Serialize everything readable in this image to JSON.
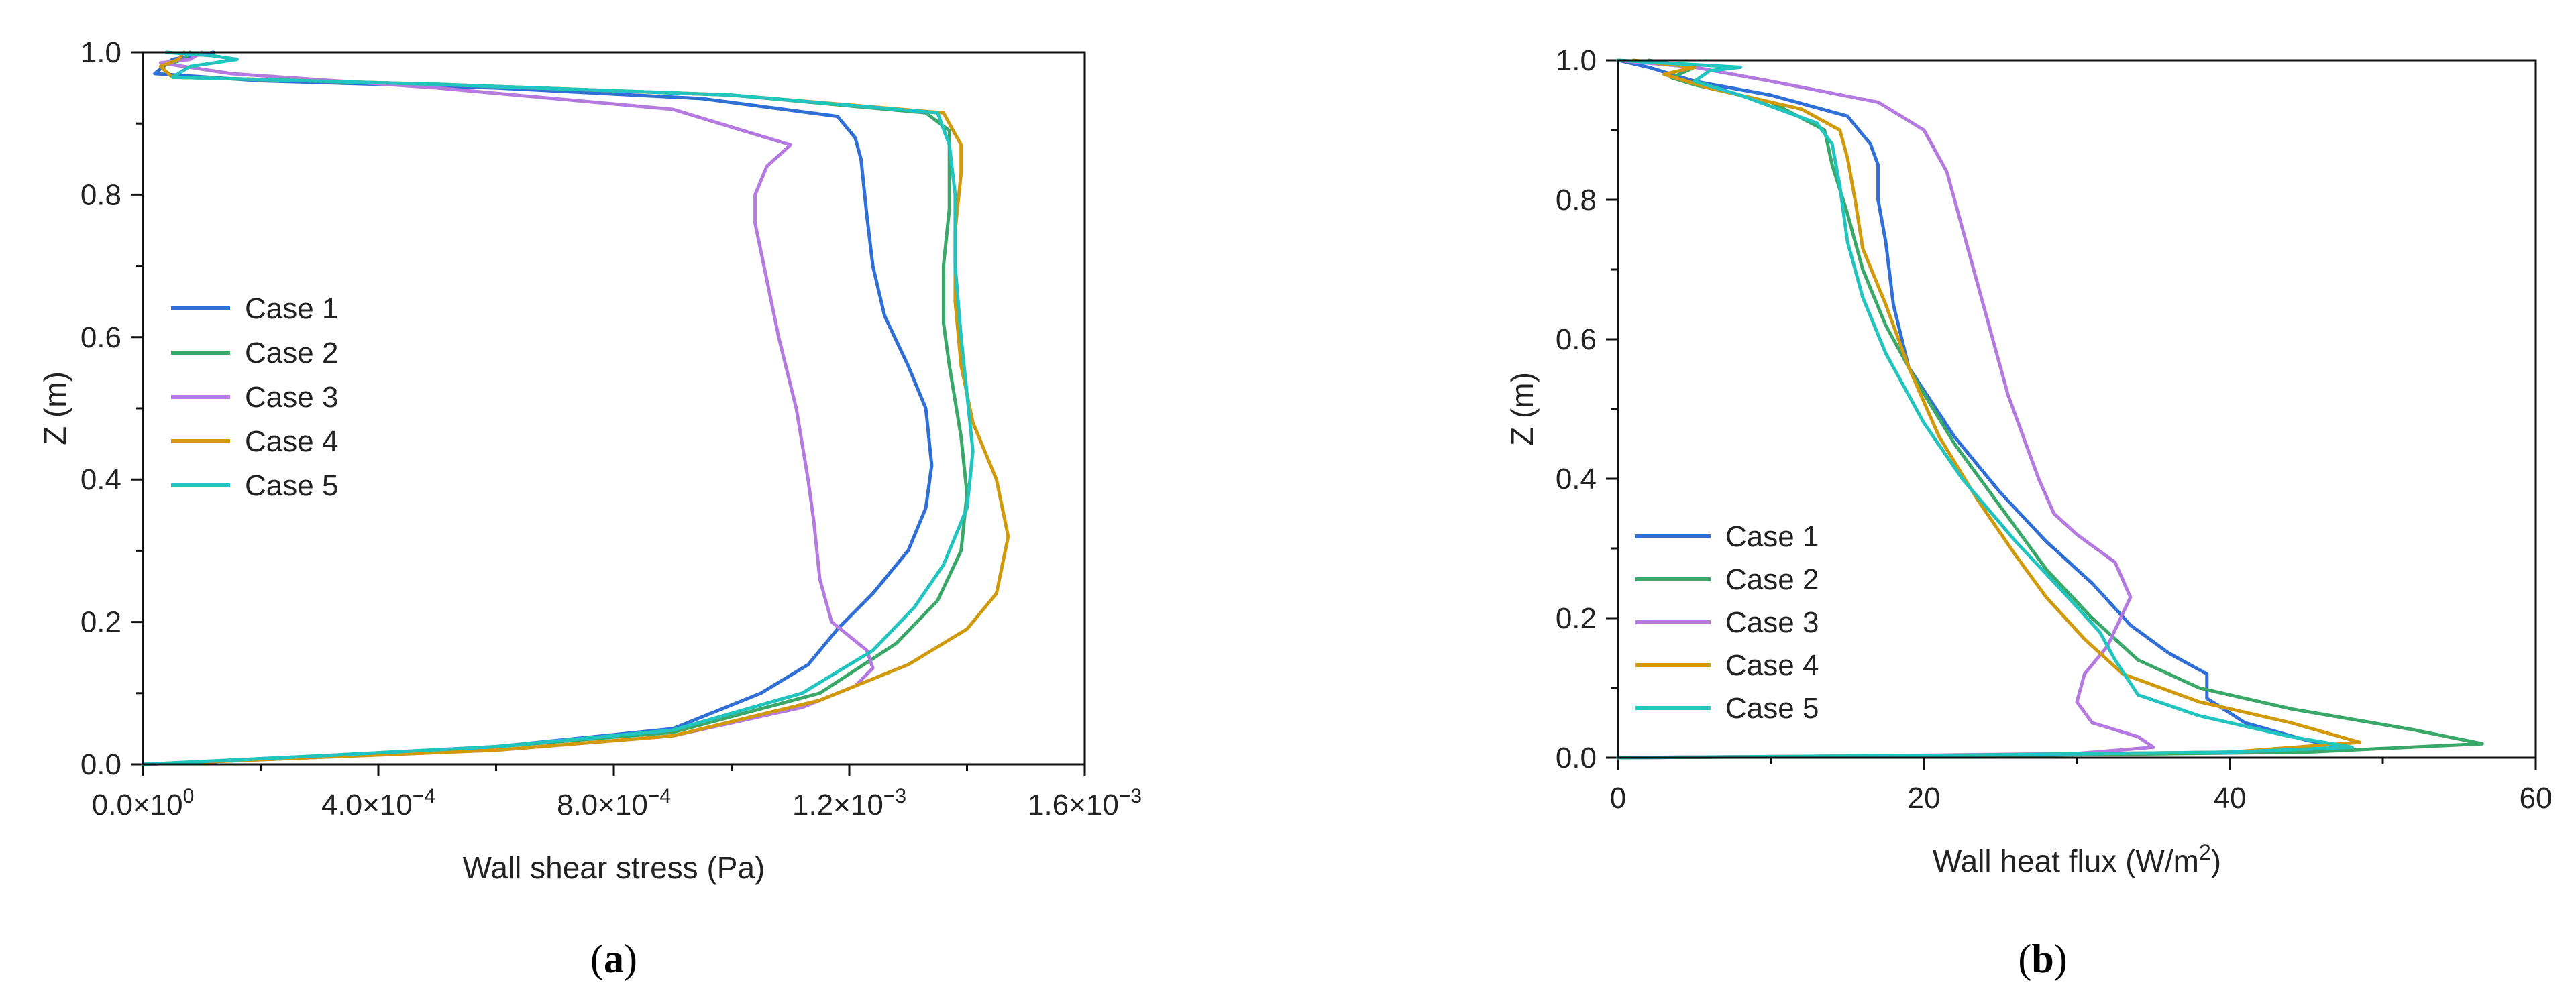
{
  "colors": {
    "case1": "#2f6fd6",
    "case2": "#3aa868",
    "case3": "#b57ae0",
    "case4": "#d19a0c",
    "case5": "#22c4c0"
  },
  "chart_data": [
    {
      "type": "line",
      "panel_label_open": "(",
      "panel_label_letter": "a",
      "panel_label_close": ")",
      "xlabel": "Wall shear stress (Pa)",
      "ylabel": "Z (m)",
      "xlim": [
        0,
        0.0016
      ],
      "ylim": [
        0,
        1.0
      ],
      "xticks": [
        0,
        0.0004,
        0.0008,
        0.0012,
        0.0016
      ],
      "xtick_mantissas": [
        "0.0",
        "4.0",
        "8.0",
        "1.2",
        "1.6"
      ],
      "xtick_exponents": [
        "0",
        "−4",
        "−4",
        "−3",
        "−3"
      ],
      "yticks": [
        0.0,
        0.2,
        0.4,
        0.6,
        0.8,
        1.0
      ],
      "ytick_labels": [
        "0.0",
        "0.2",
        "0.4",
        "0.6",
        "0.8",
        "1.0"
      ],
      "legend_position": "middle-left",
      "grid": false,
      "series": [
        {
          "name": "Case 1",
          "color_key": "case1",
          "points": [
            [
              0,
              0
            ],
            [
              0.0003,
              0.01
            ],
            [
              0.0006,
              0.025
            ],
            [
              0.0009,
              0.05
            ],
            [
              0.00105,
              0.1
            ],
            [
              0.00113,
              0.14
            ],
            [
              0.00118,
              0.19
            ],
            [
              0.00124,
              0.24
            ],
            [
              0.0013,
              0.3
            ],
            [
              0.00133,
              0.36
            ],
            [
              0.00134,
              0.42
            ],
            [
              0.00133,
              0.5
            ],
            [
              0.0013,
              0.56
            ],
            [
              0.00126,
              0.63
            ],
            [
              0.00124,
              0.7
            ],
            [
              0.00123,
              0.77
            ],
            [
              0.00122,
              0.85
            ],
            [
              0.00121,
              0.88
            ],
            [
              0.00118,
              0.91
            ],
            [
              0.00095,
              0.935
            ],
            [
              0.0006,
              0.95
            ],
            [
              0.0002,
              0.96
            ],
            [
              2e-05,
              0.97
            ],
            [
              5e-05,
              0.99
            ],
            [
              0.00012,
              1.0
            ]
          ]
        },
        {
          "name": "Case 2",
          "color_key": "case2",
          "points": [
            [
              0,
              0
            ],
            [
              0.0003,
              0.012
            ],
            [
              0.0006,
              0.025
            ],
            [
              0.0009,
              0.045
            ],
            [
              0.00115,
              0.1
            ],
            [
              0.00128,
              0.17
            ],
            [
              0.00135,
              0.23
            ],
            [
              0.00139,
              0.3
            ],
            [
              0.0014,
              0.38
            ],
            [
              0.00139,
              0.46
            ],
            [
              0.00137,
              0.56
            ],
            [
              0.00136,
              0.62
            ],
            [
              0.00136,
              0.7
            ],
            [
              0.00137,
              0.78
            ],
            [
              0.00137,
              0.85
            ],
            [
              0.00137,
              0.89
            ],
            [
              0.00133,
              0.915
            ],
            [
              0.001,
              0.94
            ],
            [
              0.0005,
              0.955
            ],
            [
              5e-05,
              0.965
            ],
            [
              3e-05,
              0.98
            ],
            [
              7e-05,
              0.99
            ],
            [
              8e-05,
              1.0
            ]
          ]
        },
        {
          "name": "Case 3",
          "color_key": "case3",
          "points": [
            [
              0,
              0
            ],
            [
              0.0003,
              0.01
            ],
            [
              0.0006,
              0.02
            ],
            [
              0.0009,
              0.04
            ],
            [
              0.00112,
              0.08
            ],
            [
              0.00121,
              0.11
            ],
            [
              0.00124,
              0.135
            ],
            [
              0.00123,
              0.16
            ],
            [
              0.0012,
              0.18
            ],
            [
              0.00117,
              0.2
            ],
            [
              0.00115,
              0.26
            ],
            [
              0.00114,
              0.34
            ],
            [
              0.00113,
              0.4
            ],
            [
              0.00111,
              0.5
            ],
            [
              0.00108,
              0.6
            ],
            [
              0.00106,
              0.68
            ],
            [
              0.00104,
              0.76
            ],
            [
              0.00104,
              0.8
            ],
            [
              0.00106,
              0.84
            ],
            [
              0.0011,
              0.87
            ],
            [
              0.0009,
              0.92
            ],
            [
              0.0005,
              0.95
            ],
            [
              0.00015,
              0.97
            ],
            [
              3e-05,
              0.985
            ],
            [
              8e-05,
              0.99
            ],
            [
              0.0001,
              1.0
            ]
          ]
        },
        {
          "name": "Case 4",
          "color_key": "case4",
          "points": [
            [
              0,
              0
            ],
            [
              0.0003,
              0.01
            ],
            [
              0.0006,
              0.02
            ],
            [
              0.0009,
              0.04
            ],
            [
              0.00115,
              0.09
            ],
            [
              0.0013,
              0.14
            ],
            [
              0.0014,
              0.19
            ],
            [
              0.00145,
              0.24
            ],
            [
              0.00147,
              0.32
            ],
            [
              0.00145,
              0.4
            ],
            [
              0.00141,
              0.48
            ],
            [
              0.00139,
              0.56
            ],
            [
              0.00138,
              0.65
            ],
            [
              0.00138,
              0.75
            ],
            [
              0.00139,
              0.83
            ],
            [
              0.00139,
              0.87
            ],
            [
              0.00136,
              0.915
            ],
            [
              0.001,
              0.94
            ],
            [
              0.0005,
              0.955
            ],
            [
              5e-05,
              0.965
            ],
            [
              3e-05,
              0.98
            ],
            [
              6e-05,
              0.99
            ],
            [
              7e-05,
              1.0
            ]
          ]
        },
        {
          "name": "Case 5",
          "color_key": "case5",
          "points": [
            [
              0,
              0
            ],
            [
              0.0003,
              0.012
            ],
            [
              0.0006,
              0.025
            ],
            [
              0.0009,
              0.048
            ],
            [
              0.00112,
              0.1
            ],
            [
              0.00124,
              0.16
            ],
            [
              0.00131,
              0.22
            ],
            [
              0.00136,
              0.28
            ],
            [
              0.0014,
              0.36
            ],
            [
              0.00141,
              0.44
            ],
            [
              0.0014,
              0.52
            ],
            [
              0.00139,
              0.6
            ],
            [
              0.00138,
              0.7
            ],
            [
              0.00138,
              0.8
            ],
            [
              0.00137,
              0.87
            ],
            [
              0.00135,
              0.915
            ],
            [
              0.001,
              0.94
            ],
            [
              0.0005,
              0.955
            ],
            [
              5e-05,
              0.965
            ],
            [
              8e-05,
              0.98
            ],
            [
              0.00016,
              0.99
            ],
            [
              0.00012,
              0.995
            ],
            [
              4e-05,
              1.0
            ]
          ]
        }
      ]
    },
    {
      "type": "line",
      "panel_label_open": "(",
      "panel_label_letter": "b",
      "panel_label_close": ")",
      "xlabel_prefix": "Wall heat flux (W/m",
      "xlabel_sup": "2",
      "xlabel_suffix": ")",
      "ylabel": "Z (m)",
      "xlim": [
        0,
        60
      ],
      "ylim": [
        0,
        1.0
      ],
      "xticks": [
        0,
        20,
        40,
        60
      ],
      "xtick_labels": [
        "0",
        "20",
        "40",
        "60"
      ],
      "yticks": [
        0.0,
        0.2,
        0.4,
        0.6,
        0.8,
        1.0
      ],
      "ytick_labels": [
        "0.0",
        "0.2",
        "0.4",
        "0.6",
        "0.8",
        "1.0"
      ],
      "legend_position": "bottom-left",
      "grid": false,
      "series": [
        {
          "name": "Case 1",
          "color_key": "case1",
          "points": [
            [
              0,
              0
            ],
            [
              20,
              0.003
            ],
            [
              40,
              0.008
            ],
            [
              48,
              0.012
            ],
            [
              45,
              0.025
            ],
            [
              41,
              0.05
            ],
            [
              38.5,
              0.085
            ],
            [
              38.5,
              0.12
            ],
            [
              36,
              0.15
            ],
            [
              33.5,
              0.19
            ],
            [
              31,
              0.25
            ],
            [
              28,
              0.31
            ],
            [
              25,
              0.38
            ],
            [
              22,
              0.46
            ],
            [
              19,
              0.56
            ],
            [
              18,
              0.65
            ],
            [
              17.5,
              0.74
            ],
            [
              17,
              0.8
            ],
            [
              17,
              0.85
            ],
            [
              16.5,
              0.88
            ],
            [
              15,
              0.92
            ],
            [
              10,
              0.95
            ],
            [
              5,
              0.97
            ],
            [
              2,
              0.99
            ],
            [
              0,
              1.0
            ]
          ]
        },
        {
          "name": "Case 2",
          "color_key": "case2",
          "points": [
            [
              0,
              0
            ],
            [
              25,
              0.003
            ],
            [
              45,
              0.008
            ],
            [
              56.5,
              0.02
            ],
            [
              52,
              0.04
            ],
            [
              44,
              0.07
            ],
            [
              38,
              0.1
            ],
            [
              34,
              0.14
            ],
            [
              31,
              0.2
            ],
            [
              28,
              0.27
            ],
            [
              25,
              0.36
            ],
            [
              22,
              0.45
            ],
            [
              19.5,
              0.54
            ],
            [
              17.5,
              0.62
            ],
            [
              16,
              0.7
            ],
            [
              15,
              0.78
            ],
            [
              14,
              0.85
            ],
            [
              13.5,
              0.9
            ],
            [
              10,
              0.94
            ],
            [
              5,
              0.965
            ],
            [
              3.5,
              0.975
            ],
            [
              5,
              0.99
            ],
            [
              2,
              1.0
            ]
          ]
        },
        {
          "name": "Case 3",
          "color_key": "case3",
          "points": [
            [
              0,
              0
            ],
            [
              18,
              0.003
            ],
            [
              30,
              0.006
            ],
            [
              35,
              0.015
            ],
            [
              34,
              0.03
            ],
            [
              31,
              0.05
            ],
            [
              30,
              0.08
            ],
            [
              30.5,
              0.12
            ],
            [
              32,
              0.16
            ],
            [
              33.5,
              0.23
            ],
            [
              32.5,
              0.28
            ],
            [
              30,
              0.32
            ],
            [
              28.5,
              0.35
            ],
            [
              27.5,
              0.4
            ],
            [
              26.5,
              0.46
            ],
            [
              25.5,
              0.52
            ],
            [
              24.5,
              0.6
            ],
            [
              23.5,
              0.68
            ],
            [
              22.5,
              0.76
            ],
            [
              21.5,
              0.84
            ],
            [
              20,
              0.9
            ],
            [
              17,
              0.94
            ],
            [
              10,
              0.97
            ],
            [
              5,
              0.99
            ],
            [
              0,
              1.0
            ]
          ]
        },
        {
          "name": "Case 4",
          "color_key": "case4",
          "points": [
            [
              0,
              0
            ],
            [
              20,
              0.003
            ],
            [
              40,
              0.008
            ],
            [
              48.5,
              0.022
            ],
            [
              44,
              0.05
            ],
            [
              38,
              0.08
            ],
            [
              33,
              0.12
            ],
            [
              30.5,
              0.17
            ],
            [
              28,
              0.23
            ],
            [
              26,
              0.29
            ],
            [
              23.5,
              0.37
            ],
            [
              21,
              0.46
            ],
            [
              19,
              0.56
            ],
            [
              17.5,
              0.65
            ],
            [
              16,
              0.73
            ],
            [
              15.5,
              0.8
            ],
            [
              15,
              0.86
            ],
            [
              14.5,
              0.9
            ],
            [
              12,
              0.93
            ],
            [
              6,
              0.96
            ],
            [
              3,
              0.98
            ],
            [
              5,
              0.99
            ],
            [
              1,
              1.0
            ]
          ]
        },
        {
          "name": "Case 5",
          "color_key": "case5",
          "points": [
            [
              0,
              0
            ],
            [
              20,
              0.003
            ],
            [
              40,
              0.008
            ],
            [
              48,
              0.015
            ],
            [
              44,
              0.03
            ],
            [
              38,
              0.06
            ],
            [
              34,
              0.09
            ],
            [
              32.5,
              0.14
            ],
            [
              31.5,
              0.18
            ],
            [
              29,
              0.24
            ],
            [
              26,
              0.31
            ],
            [
              22.5,
              0.4
            ],
            [
              20,
              0.48
            ],
            [
              17.5,
              0.58
            ],
            [
              16,
              0.66
            ],
            [
              15,
              0.74
            ],
            [
              14.5,
              0.82
            ],
            [
              14,
              0.88
            ],
            [
              13,
              0.91
            ],
            [
              8,
              0.95
            ],
            [
              5,
              0.97
            ],
            [
              6,
              0.985
            ],
            [
              8,
              0.99
            ],
            [
              4,
              0.995
            ],
            [
              0,
              1.0
            ]
          ]
        }
      ]
    }
  ]
}
